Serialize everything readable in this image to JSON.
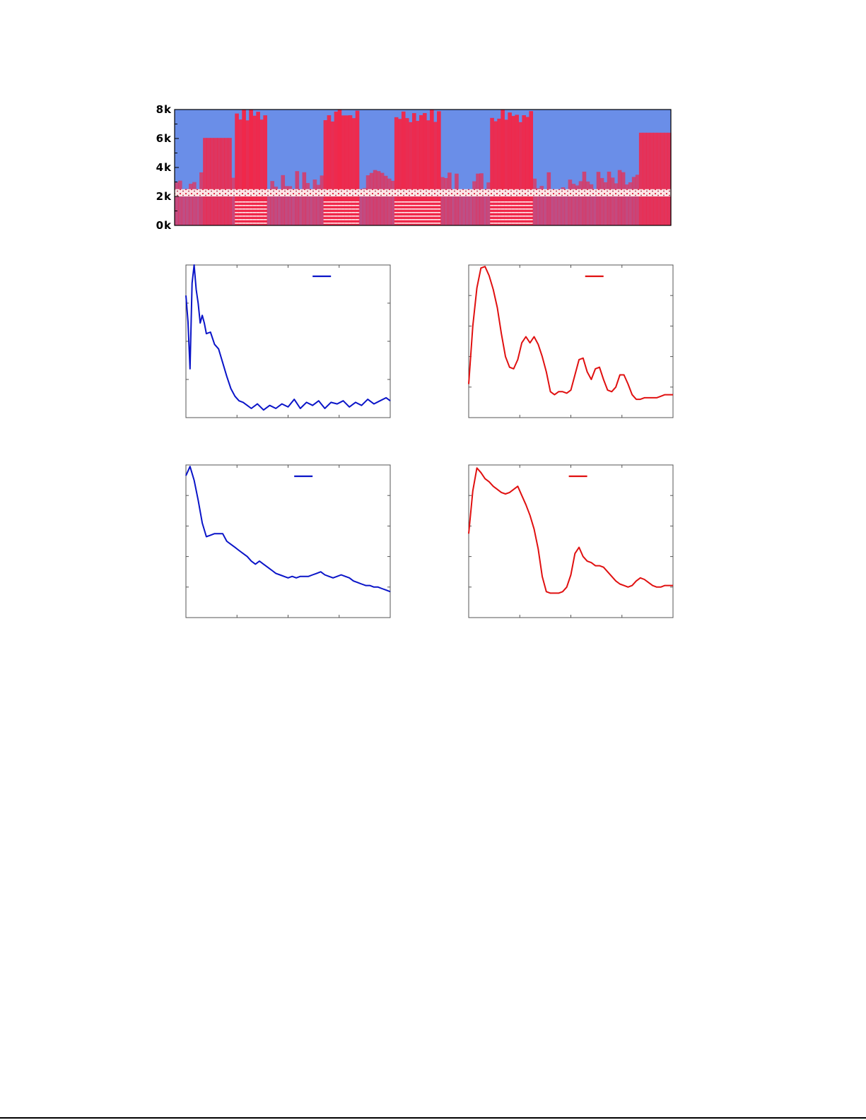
{
  "chart_data": [
    {
      "type": "heatmap",
      "title": "",
      "ytick_labels": [
        "0k",
        "2k",
        "4k",
        "6k",
        "8k"
      ],
      "yticks": [
        0,
        2000,
        4000,
        6000,
        8000
      ],
      "ylim": [
        0,
        8000
      ],
      "colors": {
        "low": "#6a8ee8",
        "mid": "#f0284a",
        "high": "#fff4f4"
      },
      "narrowband_noise_hz": [
        2000,
        2500
      ],
      "voiced_segments": [
        [
          0.12,
          0.18
        ],
        [
          0.3,
          0.37
        ],
        [
          0.44,
          0.53
        ],
        [
          0.63,
          0.72
        ]
      ]
    },
    {
      "type": "line",
      "legend_color": "#0a14c8",
      "series": [
        {
          "color": "#0a14c8",
          "x": [
            0,
            1,
            2,
            3,
            4,
            5,
            6,
            7,
            8,
            9,
            10,
            12,
            14,
            16,
            18,
            20,
            22,
            24,
            26,
            28,
            30,
            32,
            35,
            38,
            41,
            44,
            47,
            50,
            53,
            56,
            59,
            62,
            65,
            68,
            71,
            74,
            77,
            80,
            83,
            86,
            89,
            92,
            95,
            98,
            100
          ],
          "y": [
            0.8,
            0.63,
            0.32,
            0.88,
            1.0,
            0.84,
            0.75,
            0.62,
            0.67,
            0.62,
            0.55,
            0.56,
            0.48,
            0.45,
            0.36,
            0.27,
            0.19,
            0.14,
            0.11,
            0.1,
            0.08,
            0.06,
            0.09,
            0.05,
            0.08,
            0.06,
            0.09,
            0.07,
            0.12,
            0.06,
            0.1,
            0.08,
            0.11,
            0.06,
            0.1,
            0.09,
            0.11,
            0.07,
            0.1,
            0.08,
            0.12,
            0.09,
            0.11,
            0.13,
            0.11
          ]
        }
      ],
      "xlim": [
        0,
        100
      ],
      "ylim": [
        0,
        1
      ]
    },
    {
      "type": "line",
      "legend_color": "#e01010",
      "series": [
        {
          "color": "#e01010",
          "x": [
            0,
            2,
            4,
            6,
            8,
            10,
            12,
            14,
            16,
            18,
            20,
            22,
            24,
            26,
            28,
            30,
            32,
            34,
            36,
            38,
            40,
            42,
            44,
            46,
            48,
            50,
            52,
            54,
            56,
            58,
            60,
            62,
            64,
            66,
            68,
            70,
            72,
            74,
            76,
            78,
            80,
            82,
            84,
            86,
            88,
            90,
            92,
            94,
            96,
            98,
            100
          ],
          "y": [
            0.22,
            0.6,
            0.85,
            0.98,
            0.99,
            0.93,
            0.84,
            0.72,
            0.55,
            0.4,
            0.33,
            0.32,
            0.38,
            0.49,
            0.53,
            0.49,
            0.53,
            0.48,
            0.4,
            0.3,
            0.17,
            0.15,
            0.17,
            0.17,
            0.16,
            0.18,
            0.28,
            0.38,
            0.39,
            0.3,
            0.25,
            0.32,
            0.33,
            0.25,
            0.18,
            0.17,
            0.2,
            0.28,
            0.28,
            0.22,
            0.15,
            0.12,
            0.12,
            0.13,
            0.13,
            0.13,
            0.13,
            0.14,
            0.15,
            0.15,
            0.15
          ]
        }
      ],
      "xlim": [
        0,
        100
      ],
      "ylim": [
        0,
        1
      ]
    },
    {
      "type": "line",
      "legend_color": "#0a14c8",
      "series": [
        {
          "color": "#0a14c8",
          "x": [
            0,
            2,
            4,
            6,
            8,
            10,
            12,
            14,
            16,
            18,
            20,
            22,
            24,
            26,
            28,
            30,
            32,
            34,
            36,
            38,
            40,
            42,
            44,
            46,
            48,
            50,
            52,
            54,
            56,
            58,
            60,
            62,
            64,
            66,
            68,
            70,
            72,
            74,
            76,
            78,
            80,
            82,
            84,
            86,
            88,
            90,
            92,
            94,
            96,
            98,
            100
          ],
          "y": [
            0.93,
            0.99,
            0.9,
            0.77,
            0.62,
            0.53,
            0.54,
            0.55,
            0.55,
            0.55,
            0.5,
            0.48,
            0.46,
            0.44,
            0.42,
            0.4,
            0.37,
            0.35,
            0.37,
            0.35,
            0.33,
            0.31,
            0.29,
            0.28,
            0.27,
            0.26,
            0.27,
            0.26,
            0.27,
            0.27,
            0.27,
            0.28,
            0.29,
            0.3,
            0.28,
            0.27,
            0.26,
            0.27,
            0.28,
            0.27,
            0.26,
            0.24,
            0.23,
            0.22,
            0.21,
            0.21,
            0.2,
            0.2,
            0.19,
            0.18,
            0.17
          ]
        }
      ],
      "xlim": [
        0,
        100
      ],
      "ylim": [
        0,
        1
      ]
    },
    {
      "type": "line",
      "legend_color": "#e01010",
      "series": [
        {
          "color": "#e01010",
          "x": [
            0,
            2,
            4,
            6,
            8,
            10,
            12,
            14,
            16,
            18,
            20,
            22,
            24,
            26,
            28,
            30,
            32,
            34,
            36,
            38,
            40,
            42,
            44,
            46,
            48,
            50,
            52,
            54,
            56,
            58,
            60,
            62,
            64,
            66,
            68,
            70,
            72,
            74,
            76,
            78,
            80,
            82,
            84,
            86,
            88,
            90,
            92,
            94,
            96,
            98,
            100
          ],
          "y": [
            0.55,
            0.83,
            0.98,
            0.95,
            0.91,
            0.89,
            0.86,
            0.84,
            0.82,
            0.81,
            0.82,
            0.84,
            0.86,
            0.8,
            0.74,
            0.67,
            0.58,
            0.45,
            0.27,
            0.17,
            0.16,
            0.16,
            0.16,
            0.17,
            0.2,
            0.28,
            0.42,
            0.46,
            0.4,
            0.37,
            0.36,
            0.34,
            0.34,
            0.33,
            0.3,
            0.27,
            0.24,
            0.22,
            0.21,
            0.2,
            0.21,
            0.24,
            0.26,
            0.25,
            0.23,
            0.21,
            0.2,
            0.2,
            0.21,
            0.21,
            0.21
          ]
        }
      ],
      "xlim": [
        0,
        100
      ],
      "ylim": [
        0,
        1
      ]
    }
  ]
}
